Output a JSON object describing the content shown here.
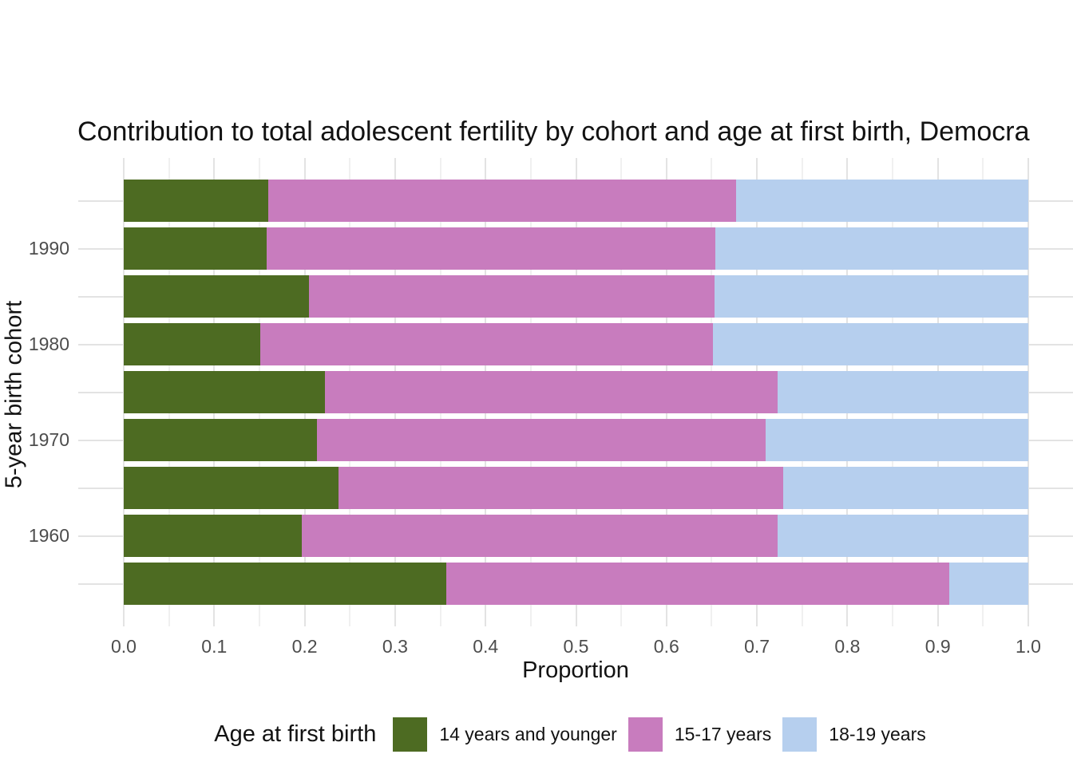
{
  "chart_data": {
    "type": "bar",
    "variant": "horizontal-stacked",
    "title": "Contribution to total adolescent fertility by cohort and age at first birth,  Democra",
    "xlabel": "Proportion",
    "ylabel": "5-year birth cohort",
    "xlim": [
      0.0,
      1.0
    ],
    "x_tick_labels": [
      "0.0",
      "0.1",
      "0.2",
      "0.3",
      "0.4",
      "0.5",
      "0.6",
      "0.7",
      "0.8",
      "0.9",
      "1.0"
    ],
    "x_minor_gridline_step": 0.05,
    "grid": true,
    "rows": 9,
    "y_ticks": [
      {
        "row": 1,
        "label": "1990"
      },
      {
        "row": 3,
        "label": "1980"
      },
      {
        "row": 5,
        "label": "1970"
      },
      {
        "row": 7,
        "label": "1960"
      }
    ],
    "legend_title": "Age at first birth",
    "legend_position": "bottom",
    "series": [
      {
        "name": "14 years and younger",
        "color": "#4d6b22",
        "values": [
          0.16,
          0.158,
          0.205,
          0.151,
          0.222,
          0.214,
          0.237,
          0.197,
          0.357
        ]
      },
      {
        "name": "15-17 years",
        "color": "#c87cbe",
        "values": [
          0.517,
          0.496,
          0.448,
          0.5,
          0.501,
          0.496,
          0.492,
          0.526,
          0.556
        ]
      },
      {
        "name": "18-19 years",
        "color": "#b6cfee",
        "values": [
          0.323,
          0.346,
          0.347,
          0.349,
          0.277,
          0.29,
          0.271,
          0.277,
          0.087
        ]
      }
    ],
    "colors": {
      "grid_major": "#e3e3e3",
      "grid_minor": "#f0f0f0",
      "tick_label": "#4d4d4d",
      "text": "#121212"
    }
  }
}
